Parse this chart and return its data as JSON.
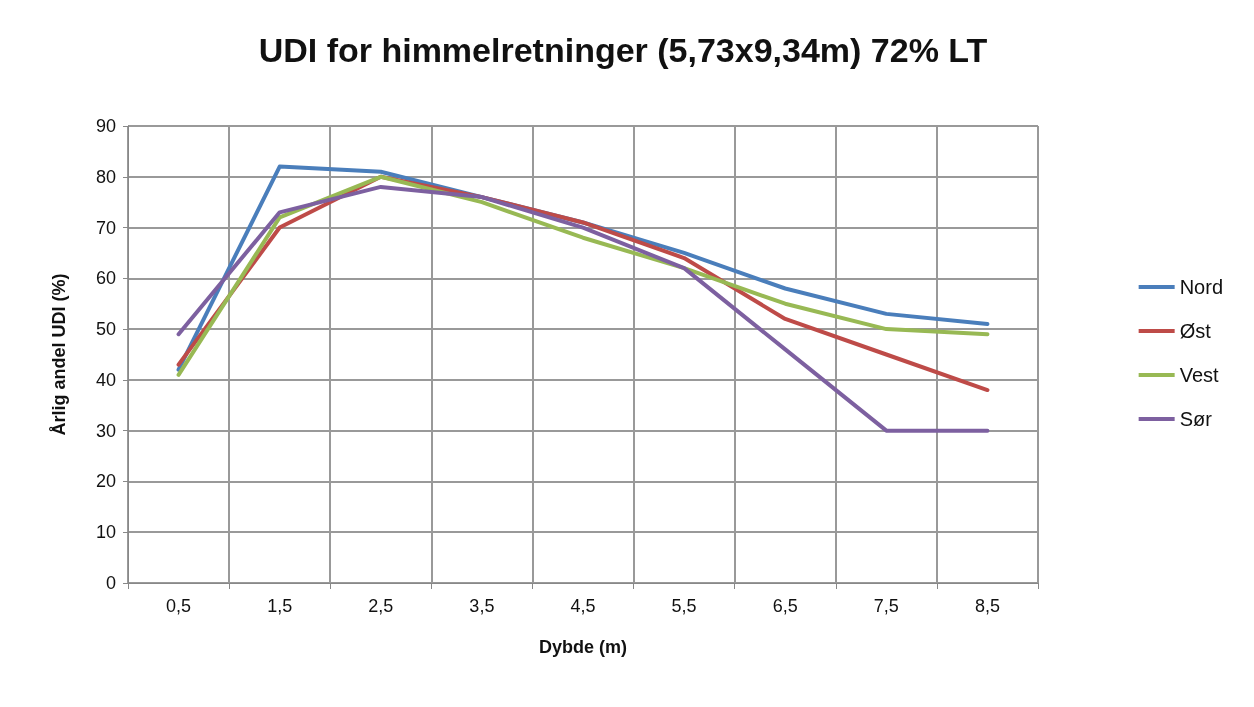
{
  "chart_data": {
    "type": "line",
    "title": "UDI for himmelretninger (5,73x9,34m) 72% LT",
    "xlabel": "Dybde (m)",
    "ylabel": "Årlig andel UDI (%)",
    "categories": [
      "0,5",
      "1,5",
      "2,5",
      "3,5",
      "4,5",
      "5,5",
      "6,5",
      "7,5",
      "8,5"
    ],
    "series": [
      {
        "name": "Nord",
        "color": "#4a7ebb",
        "values": [
          42,
          82,
          81,
          76,
          71,
          65,
          58,
          53,
          51
        ]
      },
      {
        "name": "Øst",
        "color": "#be4b48",
        "values": [
          43,
          70,
          80,
          76,
          71,
          64,
          52,
          45,
          38
        ]
      },
      {
        "name": "Vest",
        "color": "#98b954",
        "values": [
          41,
          72,
          80,
          75,
          68,
          62,
          55,
          50,
          49
        ]
      },
      {
        "name": "Sør",
        "color": "#7d60a0",
        "values": [
          49,
          73,
          78,
          76,
          70,
          62,
          46,
          30,
          30
        ]
      }
    ],
    "ylim": [
      0,
      90
    ],
    "yticks": [
      0,
      10,
      20,
      30,
      40,
      50,
      60,
      70,
      80,
      90
    ],
    "grid": true,
    "legend": "right",
    "marker": "none",
    "line_style": "solid"
  }
}
